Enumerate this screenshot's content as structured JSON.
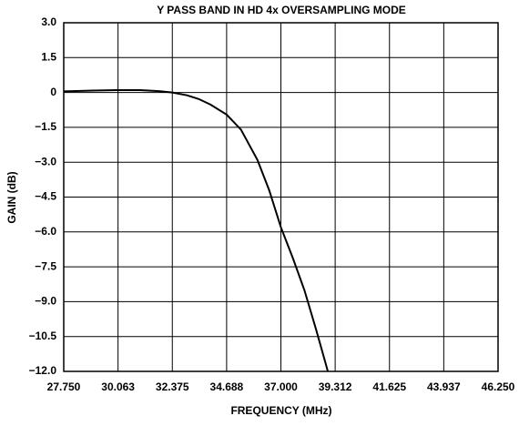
{
  "chart_data": {
    "type": "line",
    "title": "Y PASS BAND IN HD 4x OVERSAMPLING MODE",
    "x_label": "FREQUENCY (MHz)",
    "y_label": "GAIN (dB)",
    "xlim": [
      27.75,
      46.25
    ],
    "ylim": [
      -12,
      3
    ],
    "xticks": [
      {
        "value": 27.75,
        "label": "27.750"
      },
      30.063,
      32.375,
      34.688,
      {
        "value": 37,
        "label": "37.000"
      },
      39.312,
      41.625,
      43.937,
      {
        "value": 46.25,
        "label": "46.250"
      }
    ],
    "yticks": [
      {
        "value": 3,
        "label": "3.0"
      },
      1.5,
      0,
      {
        "value": -1.5,
        "label": "−1.5"
      },
      {
        "value": -3,
        "label": "−3.0"
      },
      {
        "value": -4.5,
        "label": "−4.5"
      },
      {
        "value": -6,
        "label": "−6.0"
      },
      {
        "value": -7.5,
        "label": "−7.5"
      },
      {
        "value": -9,
        "label": "−9.0"
      },
      {
        "value": -10.5,
        "label": "−10.5"
      },
      {
        "value": -12,
        "label": "−12.0"
      }
    ],
    "grid": true,
    "series": [
      {
        "color": "#000000",
        "x": [
          27.75,
          29.0,
          30.0,
          31.0,
          31.8,
          32.375,
          33.0,
          33.5,
          34.0,
          34.688,
          35.3,
          36.0,
          36.5,
          37.0,
          37.5,
          38.0,
          38.5,
          39.0
        ],
        "values": [
          0.05,
          0.08,
          0.1,
          0.1,
          0.06,
          0.0,
          -0.12,
          -0.28,
          -0.52,
          -0.95,
          -1.6,
          -2.9,
          -4.2,
          -5.8,
          -7.1,
          -8.5,
          -10.2,
          -12.0
        ]
      }
    ]
  }
}
